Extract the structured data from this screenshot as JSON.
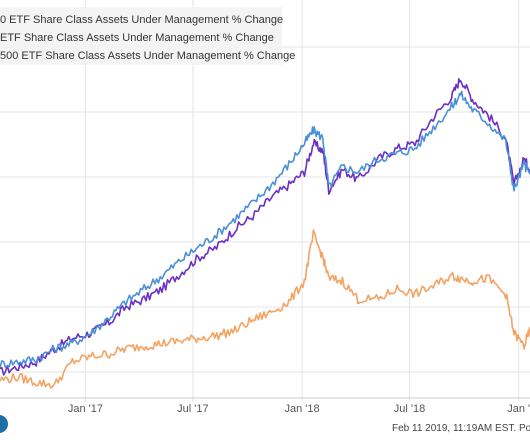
{
  "legend": {
    "items": [
      {
        "label": "0 ETF Share Class Assets Under Management % Change",
        "color": "#6a2fc4"
      },
      {
        "label": "ETF Share Class Assets Under Management % Change",
        "color": "#4a90d9"
      },
      {
        "label": "500 ETF Share Class Assets Under Management % Change",
        "color": "#f4a261"
      }
    ]
  },
  "footer": {
    "timestamp": "Feb 11 2019, 11:19AM EST.",
    "powered": "Powere"
  },
  "chart_data": {
    "type": "line",
    "grid": true,
    "legend_position": "top-left",
    "x_tick_labels": [
      "Jan '17",
      "Jul '17",
      "Jan '18",
      "Jul '18",
      "Jan '"
    ],
    "x_ticks": [
      "2017-01-01",
      "2017-07-01",
      "2018-01-01",
      "2018-07-01",
      "2019-01-01"
    ],
    "xlim": [
      "2016-08-10",
      "2019-01-20"
    ],
    "ylim": [
      -0.1,
      1.4
    ],
    "series": [
      {
        "color": "#6a2fc4",
        "x": [
          "2016-08-10",
          "2016-09-10",
          "2016-10-10",
          "2016-11-10",
          "2016-12-10",
          "2017-01-10",
          "2017-02-10",
          "2017-03-10",
          "2017-04-10",
          "2017-05-10",
          "2017-06-10",
          "2017-07-10",
          "2017-08-10",
          "2017-09-10",
          "2017-10-10",
          "2017-11-10",
          "2017-12-10",
          "2018-01-05",
          "2018-01-20",
          "2018-02-05",
          "2018-02-15",
          "2018-03-10",
          "2018-04-05",
          "2018-05-10",
          "2018-06-10",
          "2018-07-10",
          "2018-08-10",
          "2018-09-10",
          "2018-09-25",
          "2018-10-15",
          "2018-11-10",
          "2018-12-10",
          "2018-12-24",
          "2019-01-10",
          "2019-01-20"
        ],
        "values": [
          0.0,
          0.02,
          0.04,
          0.09,
          0.13,
          0.15,
          0.19,
          0.25,
          0.28,
          0.32,
          0.38,
          0.44,
          0.48,
          0.55,
          0.6,
          0.67,
          0.72,
          0.77,
          0.88,
          0.85,
          0.7,
          0.78,
          0.74,
          0.82,
          0.86,
          0.88,
          0.98,
          1.06,
          1.13,
          1.05,
          0.99,
          0.9,
          0.72,
          0.82,
          0.78
        ]
      },
      {
        "color": "#4a90d9",
        "x": [
          "2016-08-10",
          "2016-09-10",
          "2016-10-10",
          "2016-11-10",
          "2016-12-10",
          "2017-01-10",
          "2017-02-10",
          "2017-03-10",
          "2017-04-10",
          "2017-05-10",
          "2017-06-10",
          "2017-07-10",
          "2017-08-10",
          "2017-09-10",
          "2017-10-10",
          "2017-11-10",
          "2017-12-10",
          "2018-01-05",
          "2018-01-20",
          "2018-02-05",
          "2018-02-15",
          "2018-03-10",
          "2018-04-05",
          "2018-05-10",
          "2018-06-10",
          "2018-07-10",
          "2018-08-10",
          "2018-09-10",
          "2018-09-25",
          "2018-10-15",
          "2018-11-10",
          "2018-12-10",
          "2018-12-24",
          "2019-01-10",
          "2019-01-20"
        ],
        "values": [
          0.03,
          0.04,
          0.05,
          0.09,
          0.11,
          0.15,
          0.21,
          0.27,
          0.32,
          0.37,
          0.43,
          0.48,
          0.53,
          0.59,
          0.65,
          0.72,
          0.8,
          0.88,
          0.93,
          0.9,
          0.71,
          0.79,
          0.77,
          0.82,
          0.84,
          0.86,
          0.94,
          1.02,
          1.07,
          1.01,
          0.96,
          0.89,
          0.7,
          0.8,
          0.76
        ]
      },
      {
        "color": "#f4a261",
        "x": [
          "2016-08-10",
          "2016-09-10",
          "2016-10-10",
          "2016-11-10",
          "2016-12-10",
          "2017-01-10",
          "2017-02-10",
          "2017-03-10",
          "2017-04-10",
          "2017-05-10",
          "2017-06-10",
          "2017-07-10",
          "2017-08-10",
          "2017-09-10",
          "2017-10-10",
          "2017-11-10",
          "2017-12-10",
          "2018-01-05",
          "2018-01-20",
          "2018-02-05",
          "2018-02-15",
          "2018-03-10",
          "2018-04-05",
          "2018-05-10",
          "2018-06-10",
          "2018-07-10",
          "2018-08-10",
          "2018-09-10",
          "2018-09-25",
          "2018-10-15",
          "2018-11-10",
          "2018-12-10",
          "2018-12-24",
          "2019-01-10",
          "2019-01-20"
        ],
        "values": [
          -0.03,
          -0.02,
          -0.04,
          -0.05,
          0.04,
          0.06,
          0.07,
          0.09,
          0.1,
          0.11,
          0.12,
          0.13,
          0.14,
          0.16,
          0.2,
          0.23,
          0.27,
          0.35,
          0.53,
          0.44,
          0.36,
          0.35,
          0.28,
          0.28,
          0.32,
          0.3,
          0.33,
          0.37,
          0.36,
          0.35,
          0.36,
          0.3,
          0.15,
          0.1,
          0.16
        ]
      }
    ]
  }
}
